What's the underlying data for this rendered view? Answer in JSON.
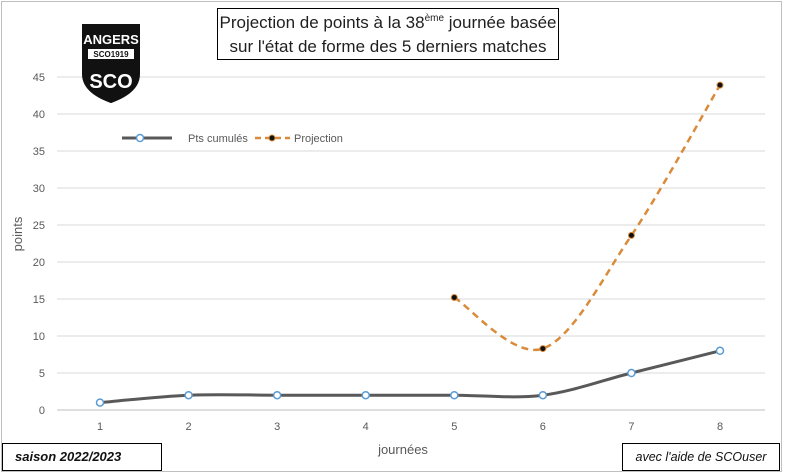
{
  "title": {
    "line1_before_sup": "Projection de points à la 38",
    "line1_sup": "ème",
    "line1_after_sup": " journée basée",
    "line2": "sur l'état de forme des 5 derniers matches"
  },
  "logo": {
    "text_top": "ANGERS",
    "text_band": "SCO1919",
    "text_bottom": "SCO"
  },
  "season_label": "saison 2022/2023",
  "credit_label": "avec l'aide de SCOuser",
  "colors": {
    "cumul": "#595959",
    "projection": "#d98b3a",
    "grid": "#d9d9d9"
  },
  "chart_data": {
    "type": "line",
    "title": "Projection de points à la 38ème journée basée sur l'état de forme des 5 derniers matches",
    "xlabel": "journées",
    "ylabel": "points",
    "x": [
      1,
      2,
      3,
      4,
      5,
      6,
      7,
      8
    ],
    "xlim": [
      1,
      8
    ],
    "ylim": [
      0,
      45
    ],
    "yticks": [
      0,
      5,
      10,
      15,
      20,
      25,
      30,
      35,
      40,
      45
    ],
    "grid": true,
    "legend": "top-left",
    "series": [
      {
        "name": "Pts cumulés",
        "x": [
          1,
          2,
          3,
          4,
          5,
          6,
          7,
          8
        ],
        "values": [
          1,
          2,
          2,
          2,
          2,
          2,
          5,
          8
        ],
        "style": "solid",
        "marker": "open-circle"
      },
      {
        "name": "Projection",
        "x": [
          5,
          6,
          7,
          8
        ],
        "values": [
          15.2,
          8.3,
          23.6,
          43.9
        ],
        "style": "dashed",
        "marker": "dot"
      }
    ]
  }
}
